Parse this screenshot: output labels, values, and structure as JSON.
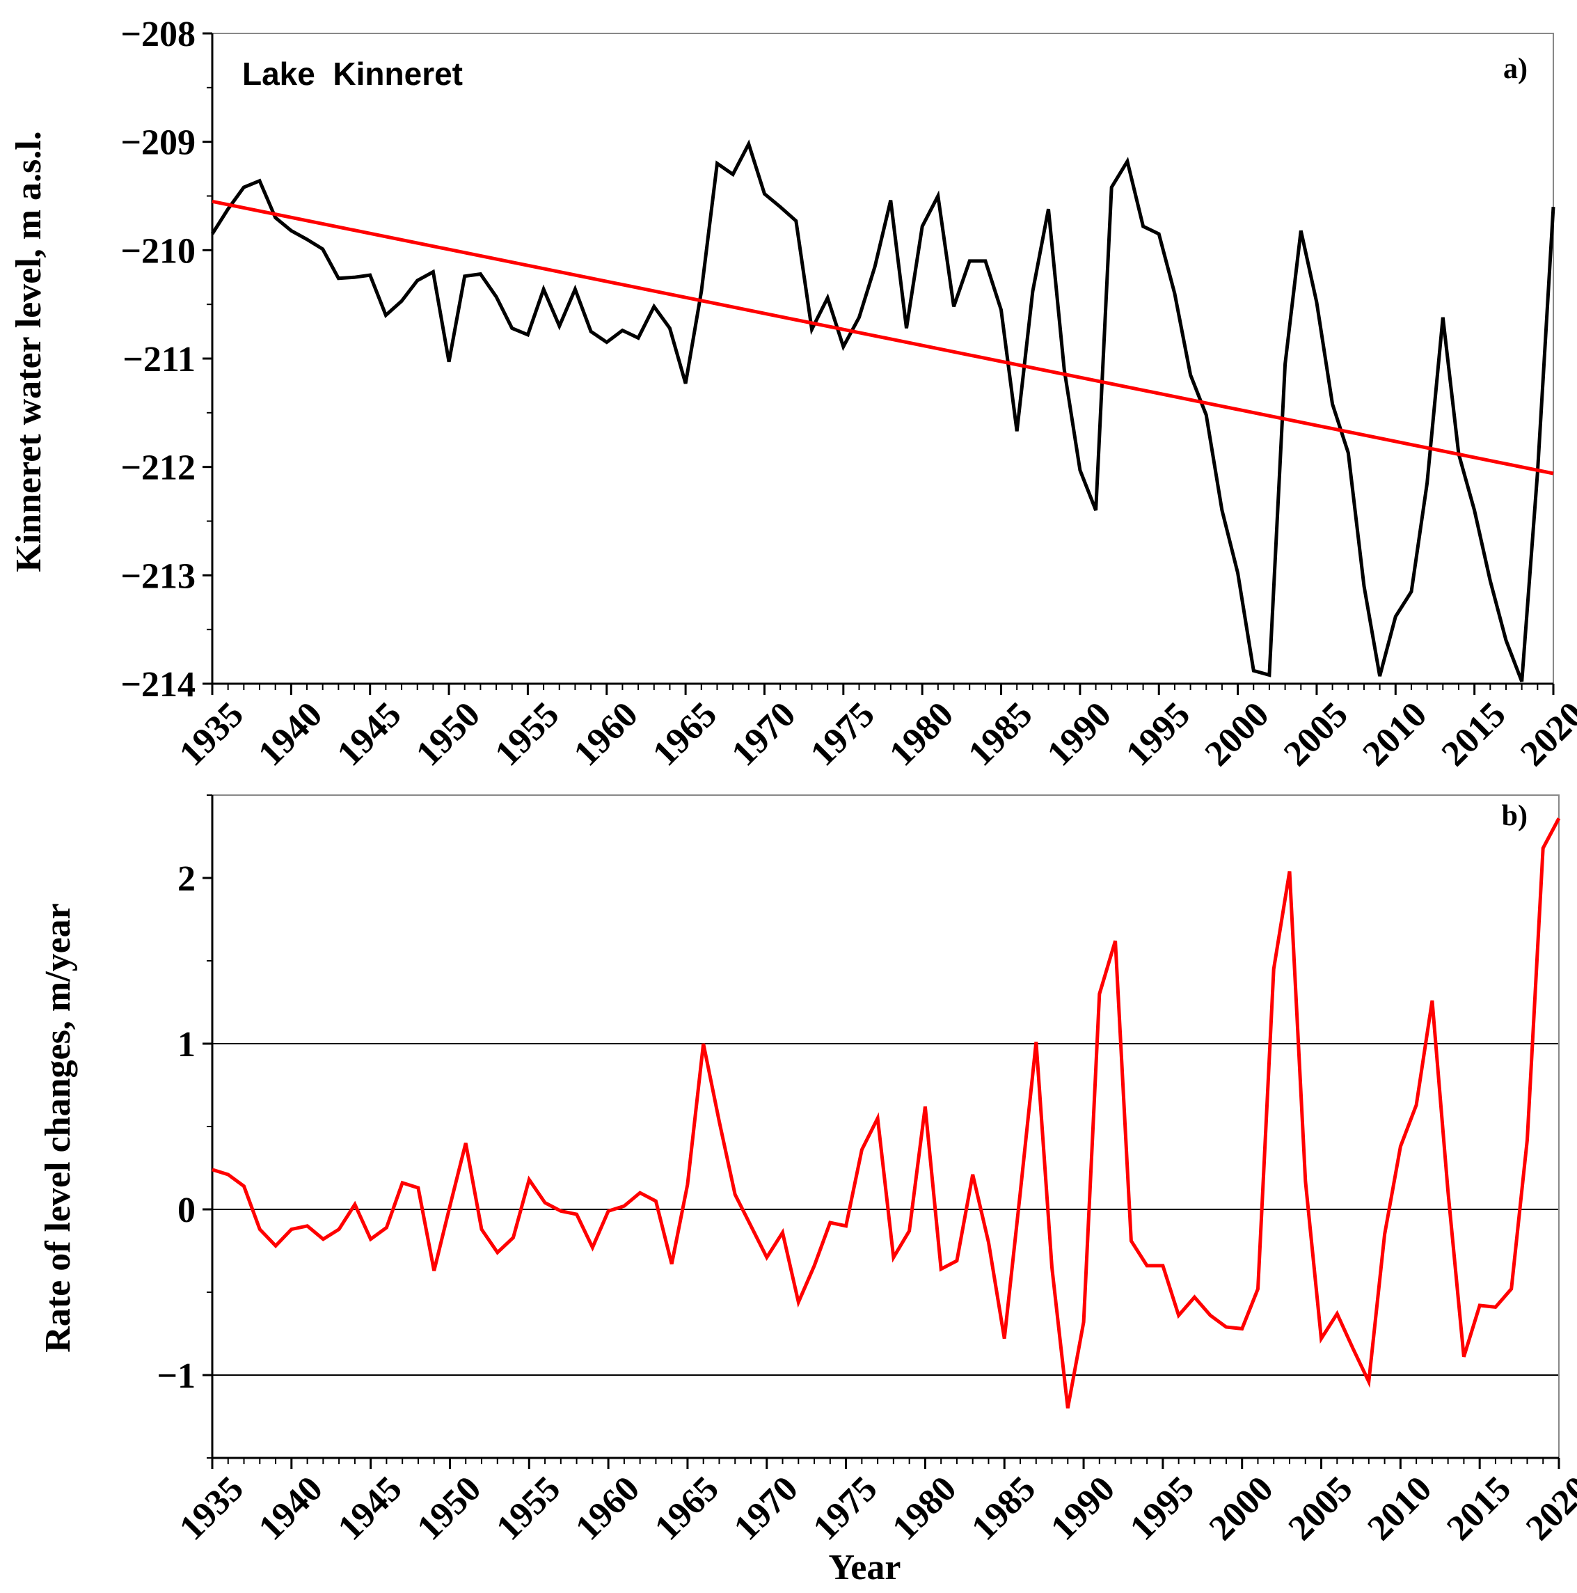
{
  "chart_data": [
    {
      "type": "line",
      "panel_label": "a)",
      "annotation": "Lake  Kinneret",
      "ylabel": "Kinneret  water  level,  m a.s.l.",
      "xlabel": "",
      "xlim": [
        1935,
        2020
      ],
      "ylim": [
        -214,
        -208
      ],
      "yticks": [
        -208,
        -209,
        -210,
        -211,
        -212,
        -213,
        -214
      ],
      "ytick_labels": [
        "−208",
        "−209",
        "−210",
        "−211",
        "−212",
        "−213",
        "−214"
      ],
      "xticks": [
        1935,
        1940,
        1945,
        1950,
        1955,
        1960,
        1965,
        1970,
        1975,
        1980,
        1985,
        1990,
        1995,
        2000,
        2005,
        2010,
        2015,
        2020
      ],
      "grid": false,
      "series": [
        {
          "name": "Water level",
          "color": "#000000",
          "x": [
            1935,
            1936,
            1937,
            1938,
            1939,
            1940,
            1941,
            1942,
            1943,
            1944,
            1945,
            1946,
            1947,
            1948,
            1949,
            1950,
            1951,
            1952,
            1953,
            1954,
            1955,
            1956,
            1957,
            1958,
            1959,
            1960,
            1961,
            1962,
            1963,
            1964,
            1965,
            1966,
            1967,
            1968,
            1969,
            1970,
            1971,
            1972,
            1973,
            1974,
            1975,
            1976,
            1977,
            1978,
            1979,
            1980,
            1981,
            1982,
            1983,
            1984,
            1985,
            1986,
            1987,
            1988,
            1989,
            1990,
            1991,
            1992,
            1993,
            1994,
            1995,
            1996,
            1997,
            1998,
            1999,
            2000,
            2001,
            2002,
            2003,
            2004,
            2005,
            2006,
            2007,
            2008,
            2009,
            2010,
            2011,
            2012,
            2013,
            2014,
            2015,
            2016,
            2017,
            2018,
            2019,
            2020
          ],
          "values": [
            -209.85,
            -209.62,
            -209.42,
            -209.36,
            -209.7,
            -209.82,
            -209.9,
            -209.99,
            -210.26,
            -210.25,
            -210.23,
            -210.6,
            -210.47,
            -210.28,
            -210.2,
            -211.03,
            -210.24,
            -210.22,
            -210.43,
            -210.72,
            -210.78,
            -210.36,
            -210.7,
            -210.36,
            -210.75,
            -210.85,
            -210.74,
            -210.81,
            -210.52,
            -210.72,
            -211.23,
            -210.38,
            -209.2,
            -209.3,
            -209.02,
            -209.48,
            -209.6,
            -209.73,
            -210.73,
            -210.44,
            -210.89,
            -210.62,
            -210.15,
            -209.54,
            -210.72,
            -209.78,
            -209.5,
            -210.52,
            -210.1,
            -210.1,
            -210.55,
            -211.67,
            -210.38,
            -209.62,
            -211.1,
            -212.03,
            -212.4,
            -209.42,
            -209.18,
            -209.78,
            -209.85,
            -210.4,
            -211.15,
            -211.52,
            -212.4,
            -212.98,
            -213.88,
            -213.92,
            -211.05,
            -209.82,
            -210.48,
            -211.42,
            -211.87,
            -213.1,
            -213.93,
            -213.38,
            -213.15,
            -212.15,
            -210.62,
            -211.88,
            -212.4,
            -213.05,
            -213.6,
            -213.98,
            -212.05,
            -209.6
          ]
        },
        {
          "name": "Linear trend",
          "color": "#ff0000",
          "x": [
            1935,
            2020
          ],
          "values": [
            -209.55,
            -212.06
          ]
        }
      ]
    },
    {
      "type": "line",
      "panel_label": "b)",
      "ylabel": "Rate of level changes,  m/year",
      "xlabel": "Year",
      "xlim": [
        1935,
        2020
      ],
      "ylim": [
        -1.5,
        2.5
      ],
      "yticks": [
        2,
        1,
        0,
        -1
      ],
      "ytick_labels": [
        "2",
        "1",
        "0",
        "−1"
      ],
      "xticks": [
        1935,
        1940,
        1945,
        1950,
        1955,
        1960,
        1965,
        1970,
        1975,
        1980,
        1985,
        1990,
        1995,
        2000,
        2005,
        2010,
        2015,
        2020
      ],
      "reference_lines": [
        1,
        0,
        -1
      ],
      "grid": false,
      "series": [
        {
          "name": "Rate of level changes",
          "color": "#ff0000",
          "x": [
            1935,
            1936,
            1937,
            1938,
            1939,
            1940,
            1941,
            1942,
            1943,
            1944,
            1945,
            1946,
            1947,
            1948,
            1949,
            1950,
            1951,
            1952,
            1953,
            1954,
            1955,
            1956,
            1957,
            1958,
            1959,
            1960,
            1961,
            1962,
            1963,
            1964,
            1965,
            1966,
            1967,
            1968,
            1969,
            1970,
            1971,
            1972,
            1973,
            1974,
            1975,
            1976,
            1977,
            1978,
            1979,
            1980,
            1981,
            1982,
            1983,
            1984,
            1985,
            1986,
            1987,
            1988,
            1989,
            1990,
            1991,
            1992,
            1993,
            1994,
            1995,
            1996,
            1997,
            1998,
            1999,
            2000,
            2001,
            2002,
            2003,
            2004,
            2005,
            2006,
            2007,
            2008,
            2009,
            2010,
            2011,
            2012,
            2013,
            2014,
            2015,
            2016,
            2017,
            2018,
            2019,
            2020
          ],
          "values": [
            0.24,
            0.21,
            0.14,
            -0.12,
            -0.22,
            -0.12,
            -0.1,
            -0.18,
            -0.12,
            0.03,
            -0.18,
            -0.11,
            0.16,
            0.13,
            -0.37,
            0.02,
            0.4,
            -0.12,
            -0.26,
            -0.17,
            0.18,
            0.04,
            -0.01,
            -0.03,
            -0.23,
            -0.01,
            0.02,
            0.1,
            0.05,
            -0.33,
            0.15,
            1.0,
            0.53,
            0.09,
            -0.1,
            -0.29,
            -0.14,
            -0.56,
            -0.34,
            -0.08,
            -0.1,
            0.36,
            0.55,
            -0.29,
            -0.13,
            0.62,
            -0.36,
            -0.31,
            0.21,
            -0.2,
            -0.78,
            0.1,
            1.01,
            -0.35,
            -1.2,
            -0.68,
            1.3,
            1.62,
            -0.19,
            -0.34,
            -0.34,
            -0.64,
            -0.53,
            -0.64,
            -0.71,
            -0.72,
            -0.48,
            1.45,
            2.04,
            0.17,
            -0.78,
            -0.63,
            -0.84,
            -1.04,
            -0.15,
            0.38,
            0.63,
            1.26,
            0.11,
            -0.89,
            -0.58,
            -0.59,
            -0.48,
            0.42,
            2.18,
            2.36
          ]
        }
      ]
    }
  ]
}
